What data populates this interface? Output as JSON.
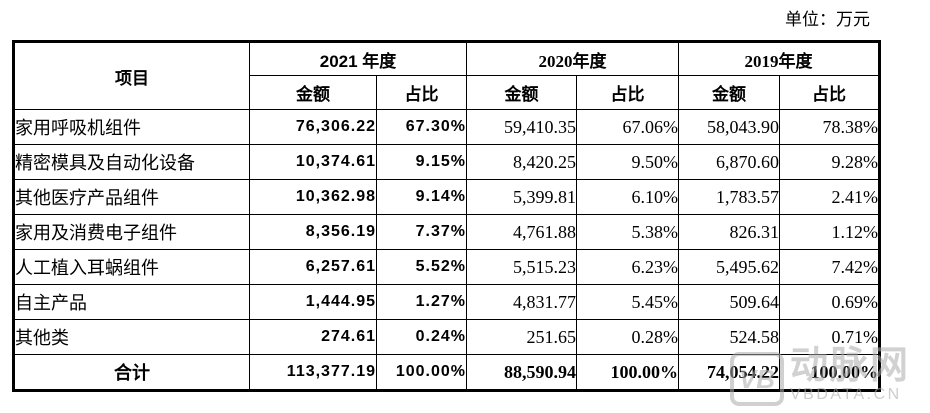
{
  "unit_label": "单位：万元",
  "table": {
    "item_header": "项目",
    "year_groups": [
      {
        "label": "2021 年度",
        "amount_label": "金额",
        "ratio_label": "占比"
      },
      {
        "label": "2020年度",
        "amount_label": "金额",
        "ratio_label": "占比"
      },
      {
        "label": "2019年度",
        "amount_label": "金额",
        "ratio_label": "占比"
      }
    ],
    "rows": [
      {
        "item": "家用呼吸机组件",
        "a2021": "76,306.22",
        "r2021": "67.30%",
        "a2020": "59,410.35",
        "r2020": "67.06%",
        "a2019": "58,043.90",
        "r2019": "78.38%"
      },
      {
        "item": "精密模具及自动化设备",
        "a2021": "10,374.61",
        "r2021": "9.15%",
        "a2020": "8,420.25",
        "r2020": "9.50%",
        "a2019": "6,870.60",
        "r2019": "9.28%"
      },
      {
        "item": "其他医疗产品组件",
        "a2021": "10,362.98",
        "r2021": "9.14%",
        "a2020": "5,399.81",
        "r2020": "6.10%",
        "a2019": "1,783.57",
        "r2019": "2.41%"
      },
      {
        "item": "家用及消费电子组件",
        "a2021": "8,356.19",
        "r2021": "7.37%",
        "a2020": "4,761.88",
        "r2020": "5.38%",
        "a2019": "826.31",
        "r2019": "1.12%"
      },
      {
        "item": "人工植入耳蜗组件",
        "a2021": "6,257.61",
        "r2021": "5.52%",
        "a2020": "5,515.23",
        "r2020": "6.23%",
        "a2019": "5,495.62",
        "r2019": "7.42%"
      },
      {
        "item": "自主产品",
        "a2021": "1,444.95",
        "r2021": "1.27%",
        "a2020": "4,831.77",
        "r2020": "5.45%",
        "a2019": "509.64",
        "r2019": "0.69%"
      },
      {
        "item": "其他类",
        "a2021": "274.61",
        "r2021": "0.24%",
        "a2020": "251.65",
        "r2020": "0.28%",
        "a2019": "524.58",
        "r2019": "0.71%"
      }
    ],
    "total": {
      "item": "合计",
      "a2021": "113,377.19",
      "r2021": "100.00%",
      "a2020": "88,590.94",
      "r2020": "100.00%",
      "a2019": "74,054.22",
      "r2019": "100.00%"
    }
  },
  "watermark": {
    "logo": "VB",
    "name": "动脉网",
    "site": "VBDATA.CN"
  }
}
